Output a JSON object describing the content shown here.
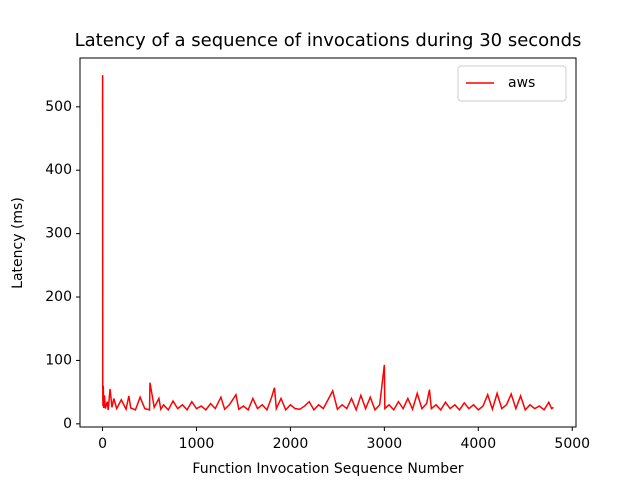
{
  "chart_data": {
    "type": "line",
    "title": "Latency of a sequence of invocations during 30 seconds",
    "xlabel": "Function Invocation Sequence Number",
    "ylabel": "Latency (ms)",
    "x": [
      0,
      1,
      2,
      3,
      5,
      8,
      12,
      20,
      30,
      50,
      60,
      80,
      100,
      120,
      150,
      200,
      250,
      280,
      300,
      350,
      400,
      450,
      500,
      505,
      550,
      600,
      620,
      650,
      700,
      750,
      800,
      850,
      900,
      950,
      1000,
      1050,
      1100,
      1150,
      1200,
      1260,
      1300,
      1350,
      1420,
      1450,
      1500,
      1550,
      1600,
      1650,
      1700,
      1750,
      1800,
      1830,
      1850,
      1900,
      1950,
      2000,
      2050,
      2100,
      2150,
      2200,
      2250,
      2300,
      2350,
      2400,
      2450,
      2500,
      2550,
      2600,
      2650,
      2700,
      2750,
      2800,
      2850,
      2900,
      2950,
      3000,
      3005,
      3050,
      3100,
      3150,
      3200,
      3250,
      3300,
      3350,
      3400,
      3450,
      3480,
      3500,
      3550,
      3600,
      3650,
      3700,
      3750,
      3800,
      3850,
      3900,
      3950,
      4000,
      4050,
      4100,
      4150,
      4200,
      4250,
      4300,
      4350,
      4400,
      4450,
      4500,
      4550,
      4600,
      4650,
      4700,
      4750,
      4780,
      4800
    ],
    "series": [
      {
        "name": "aws",
        "color": "#ff0000",
        "values": [
          495,
          550,
          70,
          40,
          28,
          60,
          25,
          45,
          24,
          35,
          22,
          55,
          26,
          40,
          24,
          38,
          23,
          44,
          25,
          22,
          42,
          24,
          22,
          65,
          26,
          40,
          23,
          30,
          22,
          36,
          24,
          30,
          22,
          35,
          24,
          28,
          22,
          32,
          24,
          42,
          23,
          30,
          46,
          23,
          28,
          22,
          40,
          24,
          30,
          22,
          42,
          57,
          24,
          40,
          22,
          30,
          24,
          23,
          28,
          35,
          22,
          30,
          24,
          38,
          52,
          23,
          30,
          24,
          40,
          22,
          45,
          24,
          42,
          22,
          30,
          93,
          24,
          30,
          22,
          35,
          24,
          40,
          23,
          48,
          24,
          32,
          54,
          24,
          30,
          22,
          34,
          24,
          30,
          22,
          33,
          24,
          30,
          22,
          28,
          46,
          23,
          48,
          24,
          30,
          47,
          24,
          44,
          22,
          30,
          24,
          28,
          22,
          34,
          24,
          26
        ]
      }
    ],
    "xlim": [
      -240,
      5040
    ],
    "xticks": [
      0,
      1000,
      2000,
      3000,
      4000,
      5000
    ],
    "ylim": [
      -5,
      577
    ],
    "yticks": [
      0,
      100,
      200,
      300,
      400,
      500
    ],
    "legend": "upper right"
  }
}
